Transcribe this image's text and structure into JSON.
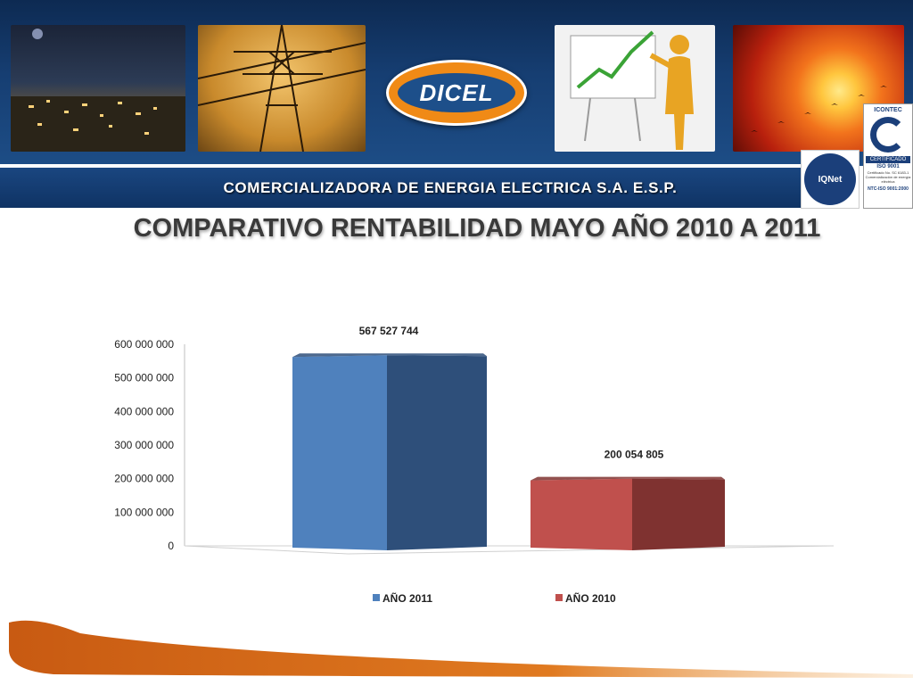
{
  "header": {
    "logo_text": "DICEL",
    "subtitle": "COMERCIALIZADORA DE ENERGIA ELECTRICA S.A. E.S.P.",
    "photos": [
      "city-night-photo",
      "power-tower-photo",
      "growth-chart-photo",
      "sunset-photo"
    ],
    "certifications": {
      "iqnet": "IQNet",
      "icontec_top": "ICONTEC",
      "icontec_label": "CERTIFICADO",
      "icontec_iso": "ISO 9001",
      "icontec_small": "Certificado No. SC 6183-1 Comercialización de energía eléctrica",
      "icontec_ntc": "NTC-ISO 9001:2000"
    }
  },
  "title": "COMPARATIVO RENTABILIDAD MAYO AÑO 2010 A 2011",
  "colors": {
    "banner": "#163e72",
    "series_2011": "#4f81bd",
    "series_2011_side": "#2e4f7a",
    "series_2010": "#c0504d",
    "series_2010_side": "#7f3230",
    "footer_orange": "#c85a12"
  },
  "chart_data": {
    "type": "bar",
    "style": "3d",
    "categories": [
      ""
    ],
    "series": [
      {
        "name": "AÑO 2011",
        "values": [
          567527744
        ],
        "label": "567 527 744"
      },
      {
        "name": "AÑO 2010",
        "values": [
          200054805
        ],
        "label": "200 054 805"
      }
    ],
    "ylim": [
      0,
      600000000
    ],
    "y_ticks": [
      "0",
      "100 000 000",
      "200 000 000",
      "300 000 000",
      "400 000 000",
      "500 000 000",
      "600 000 000"
    ],
    "legend_position": "bottom",
    "grid": false
  }
}
